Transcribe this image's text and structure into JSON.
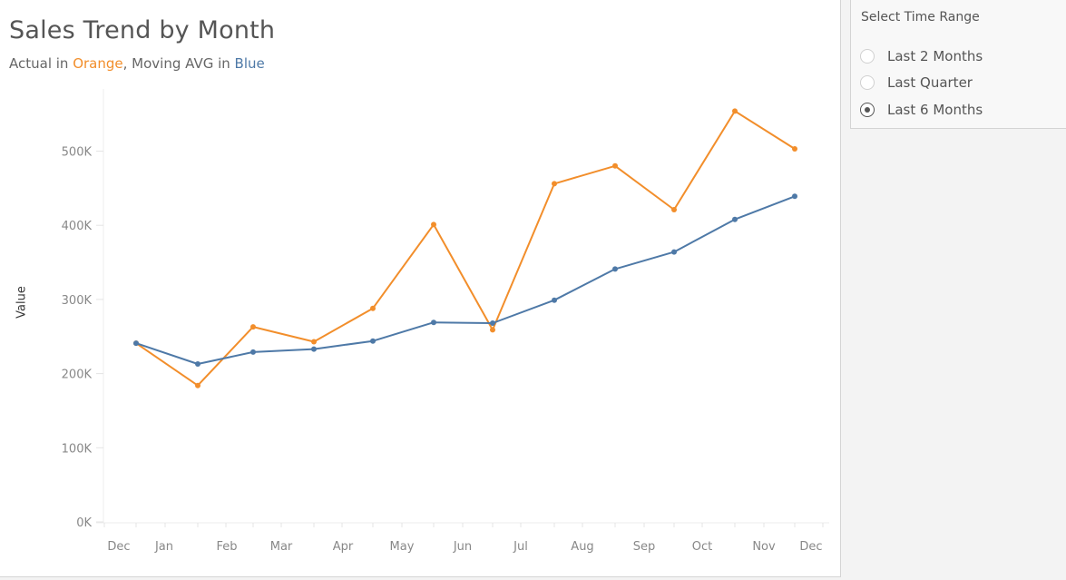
{
  "chart": {
    "title": "Sales Trend by Month",
    "subtitle": {
      "prefix": "Actual in ",
      "orange_word": "Orange",
      "middle": ", Moving AVG in ",
      "blue_word": "Blue"
    },
    "ylabel": "Value",
    "yticks": [
      "500K",
      "400K",
      "300K",
      "200K",
      "100K",
      "0K"
    ],
    "xticks": [
      "Dec",
      "Jan",
      "Feb",
      "Mar",
      "Apr",
      "May",
      "Jun",
      "Jul",
      "Aug",
      "Sep",
      "Oct",
      "Nov",
      "Dec"
    ]
  },
  "filter": {
    "title": "Select Time Range",
    "options": [
      {
        "label": "Last 2 Months",
        "selected": false
      },
      {
        "label": "Last Quarter",
        "selected": false
      },
      {
        "label": "Last 6 Months",
        "selected": true
      }
    ]
  },
  "colors": {
    "actual": "#f28e2b",
    "moving_avg": "#4e79a7"
  },
  "chart_data": {
    "type": "line",
    "title": "Sales Trend by Month",
    "subtitle": "Actual in Orange, Moving AVG in Blue",
    "xlabel": "",
    "ylabel": "Value",
    "ylim": [
      0,
      570000
    ],
    "yticks": [
      0,
      100000,
      200000,
      300000,
      400000,
      500000
    ],
    "ytick_labels": [
      "0K",
      "100K",
      "200K",
      "300K",
      "400K",
      "500K"
    ],
    "xtick_labels": [
      "Dec",
      "Jan",
      "Feb",
      "Mar",
      "Apr",
      "May",
      "Jun",
      "Jul",
      "Aug",
      "Sep",
      "Oct",
      "Nov",
      "Dec"
    ],
    "grid": false,
    "legend": "none (described in subtitle)",
    "x": [
      1,
      2,
      3,
      4,
      5,
      6,
      7,
      8,
      9,
      10,
      11,
      12
    ],
    "series": [
      {
        "name": "Actual",
        "color": "#f28e2b",
        "values": [
          241000,
          184000,
          263000,
          243000,
          288000,
          401000,
          259000,
          456000,
          480000,
          421000,
          554000,
          503000
        ]
      },
      {
        "name": "Moving AVG",
        "color": "#4e79a7",
        "values": [
          241000,
          213000,
          229000,
          233000,
          244000,
          269000,
          268000,
          299000,
          341000,
          364000,
          408000,
          439000
        ]
      }
    ]
  }
}
